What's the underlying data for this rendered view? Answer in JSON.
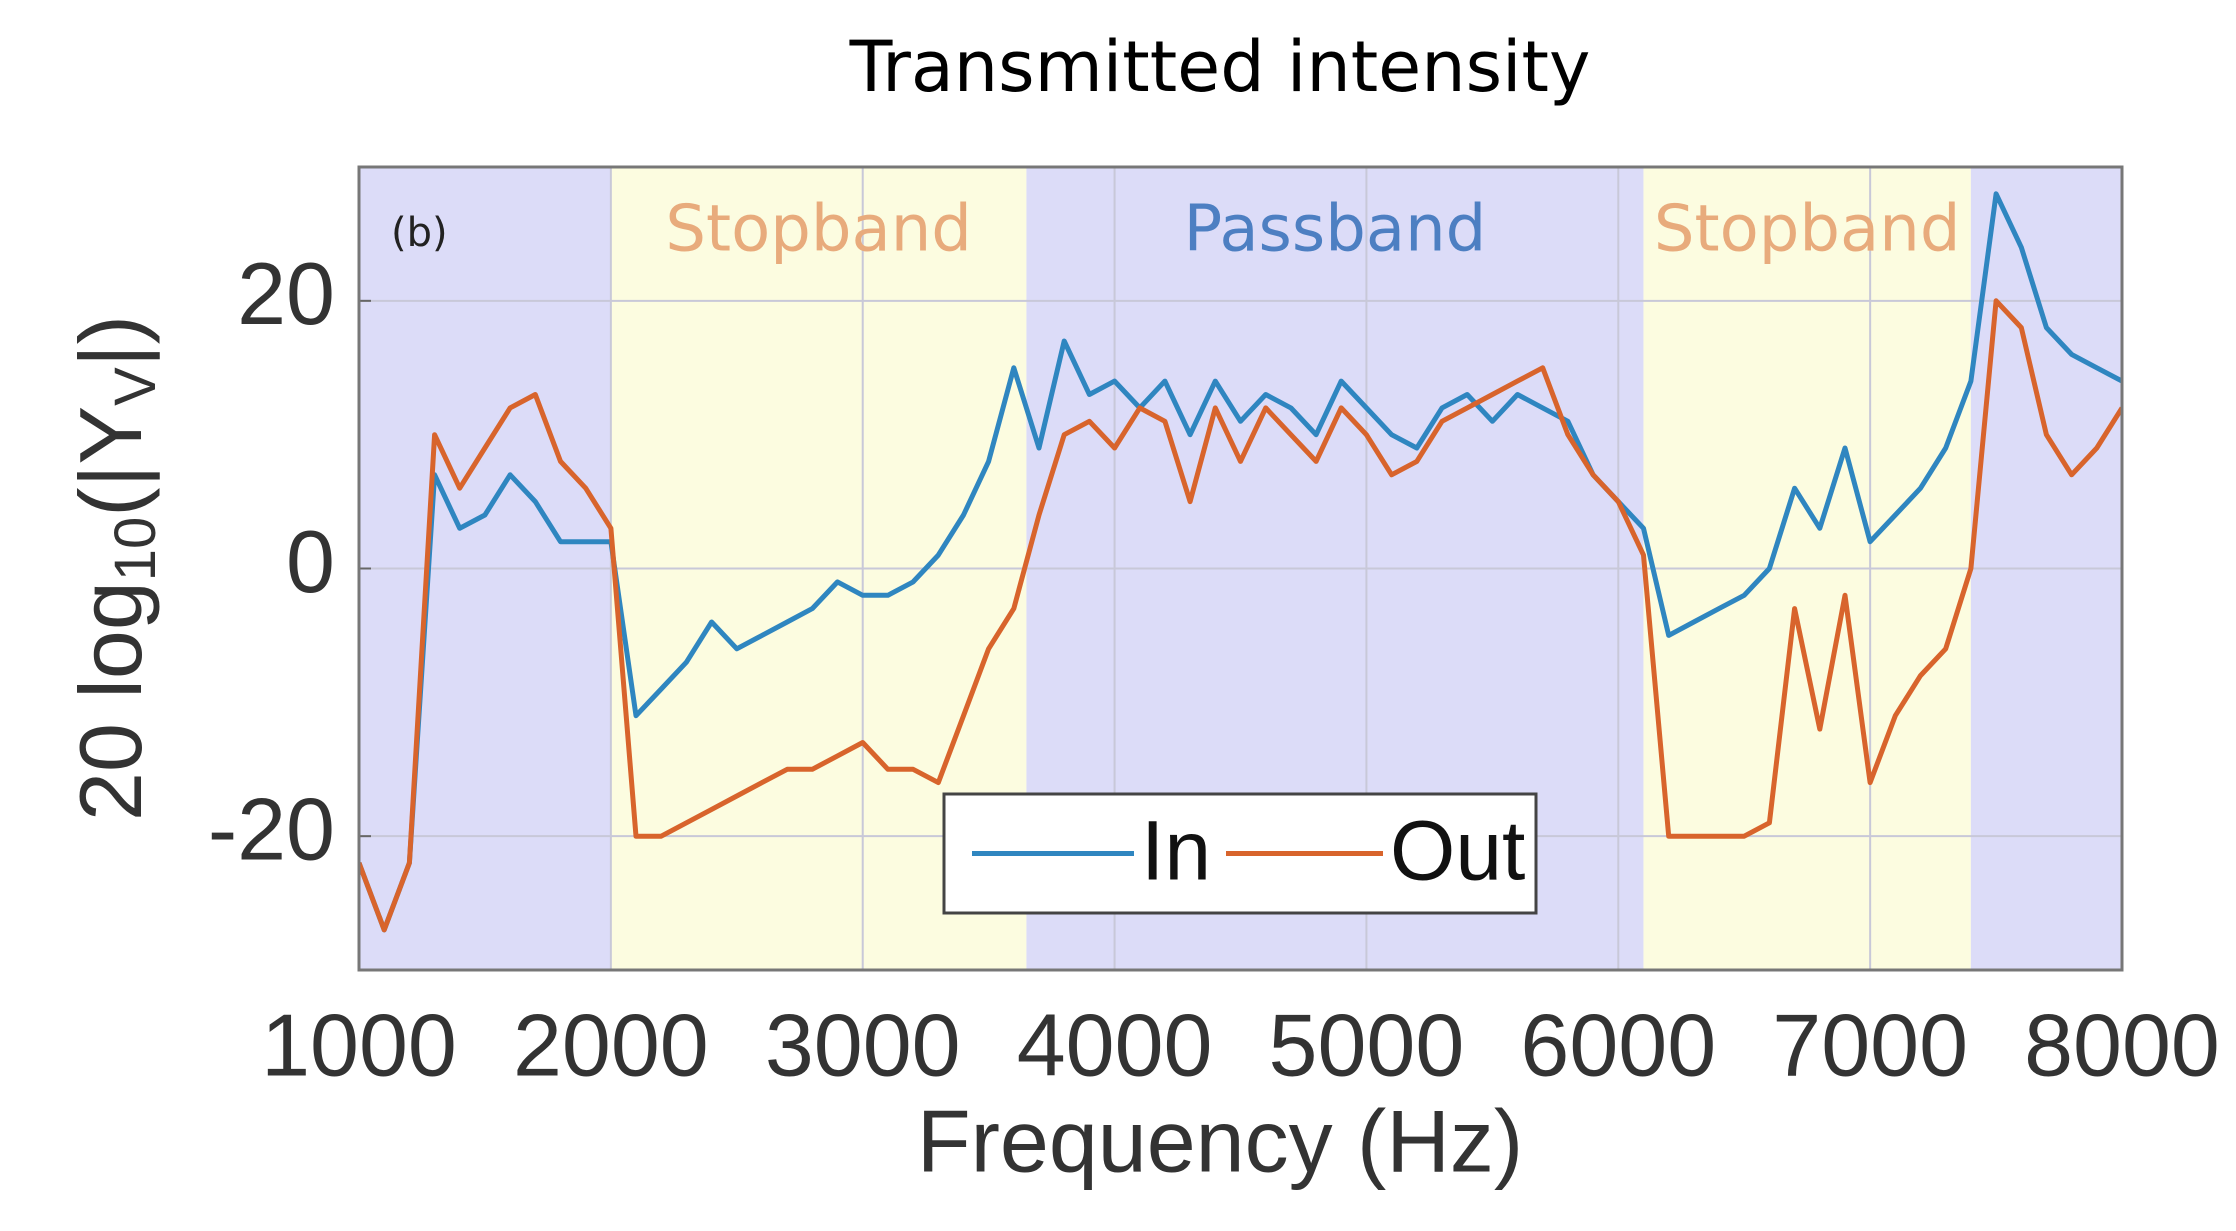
{
  "chart_data": {
    "type": "line",
    "title": "Transmitted intensity",
    "panel_label": "(b)",
    "x_label": "Frequency (Hz)",
    "y_label": [
      "20 log",
      "10",
      "(|Y",
      "V",
      "|)"
    ],
    "xlim": [
      1000,
      8000
    ],
    "ylim": [
      -30,
      30
    ],
    "xticks": [
      1000,
      2000,
      3000,
      4000,
      5000,
      6000,
      7000,
      8000
    ],
    "yticks": [
      -20,
      0,
      20
    ],
    "grid": true,
    "legend": "lower center",
    "bands": [
      {
        "start": 1000,
        "end": 2000,
        "color": "#dcdcf8"
      },
      {
        "start": 2000,
        "end": 3650,
        "color": "#fcfce0",
        "label": "Stopband",
        "label_color": "#e8ab7c"
      },
      {
        "start": 3650,
        "end": 6100,
        "color": "#dcdcf8",
        "label": "Passband",
        "label_color": "#4d7fc2"
      },
      {
        "start": 6100,
        "end": 7400,
        "color": "#fcfce0",
        "label": "Stopband",
        "label_color": "#e8ab7c"
      },
      {
        "start": 7400,
        "end": 8000,
        "color": "#dcdcf8"
      }
    ],
    "x": [
      1000,
      1100,
      1200,
      1300,
      1400,
      1500,
      1600,
      1700,
      1800,
      1900,
      2000,
      2100,
      2200,
      2300,
      2400,
      2500,
      2600,
      2700,
      2800,
      2900,
      3000,
      3100,
      3200,
      3300,
      3400,
      3500,
      3600,
      3700,
      3800,
      3900,
      4000,
      4100,
      4200,
      4300,
      4400,
      4500,
      4600,
      4700,
      4800,
      4900,
      5000,
      5100,
      5200,
      5300,
      5400,
      5500,
      5600,
      5700,
      5800,
      5900,
      6000,
      6100,
      6200,
      6300,
      6400,
      6500,
      6600,
      6700,
      6800,
      6900,
      7000,
      7100,
      7200,
      7300,
      7400,
      7500,
      7600,
      7700,
      7800,
      7900,
      8000
    ],
    "series": [
      {
        "name": "In",
        "color": "#2f86c0",
        "values": [
          -22,
          -27,
          -22,
          7,
          3,
          4,
          7,
          5,
          2,
          2,
          2,
          -11,
          -9,
          -7,
          -4,
          -6,
          -5,
          -4,
          -3,
          -1,
          -2,
          -2,
          -1,
          1,
          4,
          8,
          15,
          9,
          17,
          13,
          14,
          12,
          14,
          10,
          14,
          11,
          13,
          12,
          10,
          14,
          12,
          10,
          9,
          12,
          13,
          11,
          13,
          12,
          11,
          7,
          5,
          3,
          -5,
          -4,
          -3,
          -2,
          0,
          6,
          3,
          9,
          2,
          4,
          6,
          9,
          14,
          28,
          24,
          18,
          16,
          15,
          14
        ]
      },
      {
        "name": "Out",
        "color": "#d8642c",
        "values": [
          -22,
          -27,
          -22,
          10,
          6,
          9,
          12,
          13,
          8,
          6,
          3,
          -20,
          -20,
          -19,
          -18,
          -17,
          -16,
          -15,
          -15,
          -14,
          -13,
          -15,
          -15,
          -16,
          -11,
          -6,
          -3,
          4,
          10,
          11,
          9,
          12,
          11,
          5,
          12,
          8,
          12,
          10,
          8,
          12,
          10,
          7,
          8,
          11,
          12,
          13,
          14,
          15,
          10,
          7,
          5,
          1,
          -20,
          -20,
          -20,
          -20,
          -19,
          -3,
          -12,
          -2,
          -16,
          -11,
          -8,
          -6,
          0,
          20,
          18,
          10,
          7,
          9,
          12
        ]
      }
    ]
  }
}
